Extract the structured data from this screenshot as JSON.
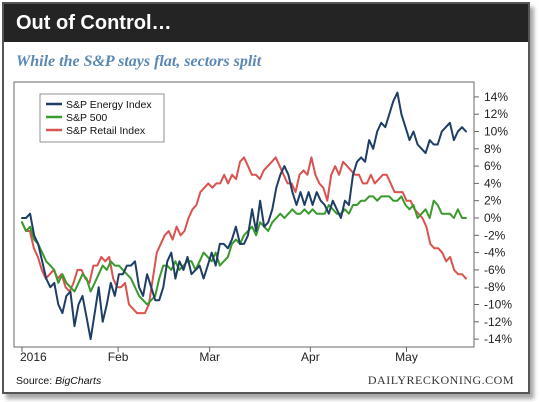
{
  "header": {
    "title": "Out of Control…"
  },
  "subtitle": "While the S&P stays flat, sectors split",
  "source": {
    "label": "Source: ",
    "value": "BigCharts"
  },
  "brand": "DAILYRECKONING.COM",
  "colors": {
    "energy": "#1f3e66",
    "sp500": "#3a9a2e",
    "retail": "#d9534f",
    "title_bg": "#242424",
    "subtitle": "#5b87b5"
  },
  "chart_data": {
    "type": "line",
    "title": "Out of Control…",
    "subtitle": "While the S&P stays flat, sectors split",
    "x_tick_labels": [
      "2016",
      "Feb",
      "Mar",
      "Apr",
      "May"
    ],
    "x_tick_positions": [
      0,
      21,
      41,
      63,
      84
    ],
    "x_range": [
      0,
      97
    ],
    "ylim": [
      -15,
      15
    ],
    "y_ticks": [
      14,
      12,
      10,
      8,
      6,
      4,
      2,
      0,
      -2,
      -4,
      -6,
      -8,
      -10,
      -12,
      -14
    ],
    "y_tick_labels": [
      "14%",
      "12%",
      "10%",
      "8%",
      "6%",
      "4%",
      "2%",
      "0%",
      "-2%",
      "-4%",
      "-6%",
      "-8%",
      "-10%",
      "-12%",
      "-14%"
    ],
    "grid": false,
    "legend_position": "top-left",
    "series": [
      {
        "name": "S&P Energy Index",
        "values": [
          0,
          0,
          0.5,
          -2,
          -3,
          -5,
          -7,
          -8,
          -7.5,
          -10,
          -11,
          -9,
          -8.5,
          -12.5,
          -10,
          -9,
          -11.5,
          -14,
          -11,
          -8,
          -12,
          -10,
          -7.5,
          -9,
          -6.5,
          -6.5,
          -5.5,
          -5.5,
          -5,
          -8,
          -9,
          -6.5,
          -8,
          -9.5,
          -9.5,
          -8,
          -5,
          -4,
          -7,
          -5,
          -6,
          -4.5,
          -6.5,
          -6,
          -5.5,
          -7,
          -5.5,
          -4,
          -5.5,
          -3,
          -3,
          -3.5,
          -2.5,
          -1,
          -3,
          -3,
          -2,
          1,
          -1.5,
          2,
          -1,
          -0.5,
          1,
          3.5,
          5,
          6,
          5,
          3,
          1.5,
          3,
          1.5,
          3,
          1.5,
          3,
          2,
          1.5,
          0.5,
          2,
          1,
          0,
          2,
          1.5,
          5,
          6.5,
          7,
          6.5,
          9,
          8,
          10,
          11,
          10.5,
          12,
          13.5,
          14.5,
          12,
          10.5,
          9,
          10,
          8.5,
          8,
          7.5,
          9,
          8.5,
          8.5,
          10,
          10.5,
          11,
          9,
          10,
          10.5,
          10
        ],
        "color": "#1f3e66"
      },
      {
        "name": "S&P 500",
        "values": [
          -0.5,
          -1.5,
          -1,
          -2.5,
          -3,
          -4,
          -5,
          -5.5,
          -6,
          -7.5,
          -6.5,
          -7.5,
          -8,
          -8.5,
          -7.5,
          -6.5,
          -7,
          -8.5,
          -7.5,
          -6.5,
          -5.5,
          -6,
          -5,
          -5.5,
          -5.5,
          -6,
          -6.5,
          -7,
          -8,
          -9,
          -9.5,
          -10,
          -9.5,
          -9,
          -7,
          -5.5,
          -5.5,
          -6,
          -5,
          -6,
          -5.5,
          -5,
          -5,
          -6,
          -5,
          -4,
          -4.5,
          -5,
          -4,
          -5.5,
          -5,
          -4.5,
          -3,
          -2.5,
          -3,
          -2,
          -1.5,
          -1,
          -2,
          -0.5,
          -1,
          -1.5,
          -0.5,
          0,
          0.5,
          0,
          0.5,
          1,
          0.5,
          0.5,
          1,
          0.5,
          1,
          0.5,
          0.5,
          0.5,
          1.5,
          1,
          0.5,
          0.5,
          1,
          0.5,
          1.5,
          1.5,
          2,
          2,
          2.5,
          2.5,
          2,
          2.5,
          2.5,
          2.5,
          2,
          2,
          2.5,
          1.5,
          1,
          1.5,
          0,
          0.5,
          1,
          0,
          2,
          1.5,
          0.5,
          0.5,
          0.5,
          0,
          1,
          0,
          0
        ],
        "color": "#3a9a2e"
      },
      {
        "name": "S&P Retail Index",
        "values": [
          -0.5,
          -1.5,
          -1.5,
          -3.5,
          -4.5,
          -6,
          -7,
          -6.5,
          -6,
          -7,
          -6.5,
          -8,
          -8.5,
          -7.5,
          -6,
          -6,
          -7,
          -7.5,
          -5.5,
          -5.5,
          -4.5,
          -5,
          -4.5,
          -7,
          -8,
          -8,
          -7.5,
          -10,
          -10.5,
          -11,
          -11,
          -11,
          -10,
          -7,
          -4,
          -3,
          -2,
          -1.5,
          -2.5,
          -1,
          -2,
          -1.5,
          0,
          1,
          1.5,
          3,
          3.5,
          4,
          3.5,
          4,
          4,
          5,
          4,
          5,
          4.5,
          6.5,
          7,
          6,
          5,
          5,
          4.5,
          5.5,
          6,
          6.5,
          7,
          6,
          5,
          4,
          4,
          3,
          5,
          5.5,
          5,
          7,
          5,
          4,
          3.5,
          2,
          5,
          6,
          5,
          6.5,
          6,
          5.5,
          5,
          5,
          4,
          4,
          5,
          4,
          4.5,
          5,
          5,
          4,
          3,
          3,
          3,
          2,
          2,
          1,
          0.5,
          0,
          -1,
          -3,
          -3.5,
          -3.5,
          -4,
          -5,
          -4.5,
          -6,
          -6.5,
          -6.5,
          -7
        ],
        "color": "#d9534f"
      }
    ]
  }
}
